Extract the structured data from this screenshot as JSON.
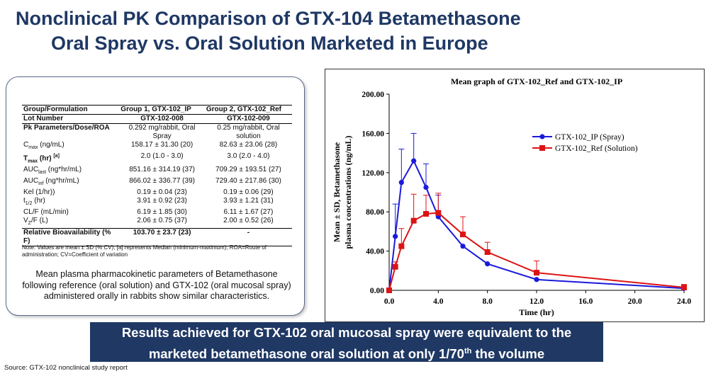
{
  "title": {
    "line1": "Nonclinical PK Comparison of GTX-104 Betamethasone",
    "line2": "Oral Spray vs. Oral Solution Marketed in Europe"
  },
  "table": {
    "header": [
      "Group/Formulation",
      "Group 1, GTX-102_IP",
      "Group 2, GTX-102_Ref"
    ],
    "lot": [
      "Lot Number",
      "GTX-102-008",
      "GTX-102-009"
    ],
    "pk_label": "Pk Parameters/Dose/ROA",
    "pk_g1": "0.292 mg/rabbit, Oral Spray",
    "pk_g2": "0.25 mg/rabbit, Oral solution",
    "rows": [
      {
        "pre": "C",
        "sub": "max",
        "post": " (ng/mL)",
        "g1": "158.17 ± 31.30 (20)",
        "g2": "82.63 ± 23.06 (28)"
      },
      {
        "pre": "T",
        "sub": "max",
        "post": " (hr) ",
        "sup": "[a]",
        "g1": "2.0 (1.0 - 3.0)",
        "g2": "3.0 (2.0 - 4.0)"
      },
      {
        "pre": "AUC",
        "sub": "last",
        "post": " (ng*hr/mL)",
        "g1": "851.16 ± 314.19 (37)",
        "g2": "709.29 ± 193.51 (27)"
      },
      {
        "pre": "AUC",
        "sub": "inf",
        "post": " (ng*hr/mL)",
        "g1": "866.02 ± 336.77 (39)",
        "g2": "729.40 ± 217.86 (30)"
      },
      {
        "pre": "Kel (1/hr))",
        "sub": "",
        "post": "",
        "g1": "0.19 ± 0.04 (23)",
        "g2": "0.19 ± 0.06 (29)"
      },
      {
        "pre": "t",
        "sub": "1/2",
        "post": " (hr)",
        "g1": "3.91 ± 0.92 (23)",
        "g2": "3.93 ± 1.21 (31)"
      },
      {
        "pre": "CL/F (mL/min)",
        "sub": "",
        "post": "",
        "g1": "6.19 ± 1.85 (30)",
        "g2": "6.11 ± 1.67 (27)"
      },
      {
        "pre": "V",
        "sub": "Z",
        "post": "/F (L)",
        "g1": "2.06 ± 0.75 (37)",
        "g2": "2.00 ± 0.52 (26)"
      }
    ],
    "rb_label": "Relative Bioavailability (% F)",
    "rb_g1": "103.70 ± 23.7 (23)",
    "rb_g2": "-",
    "note": "Note: Values are mean ± SD (% CV); [a] represents Median (minimum-maximum); ROA=Route of administration; CV=Coefficient of variation"
  },
  "caption": "Mean plasma pharmacokinetic parameters of Betamethasone following reference (oral solution) and GTX-102 (oral mucosal spray) administered orally in rabbits show similar characteristics.",
  "banner": {
    "line1": "Results achieved for GTX-102 oral mucosal spray were equivalent to the",
    "line2_pre": "marketed betamethasone oral solution at only 1/70",
    "line2_sup": "th",
    "line2_post": " the volume"
  },
  "source": "Source: GTX-102 nonclinical study report",
  "chart_data": {
    "type": "line",
    "title": "Mean graph of GTX-102_Ref and GTX-102_IP",
    "xlabel": "Time (hr)",
    "ylabel_line1": "Mean ± SD, Betamethasone",
    "ylabel_line2": "plasma concentrations (ng/mL)",
    "xlim": [
      0,
      24
    ],
    "ylim": [
      0,
      200
    ],
    "x_ticks": [
      0,
      4,
      8,
      12,
      16,
      20,
      24
    ],
    "x_tick_labels": [
      "0.0",
      "4.0",
      "8.0",
      "12.0",
      "16.0",
      "20.0",
      "24.0"
    ],
    "y_ticks": [
      0,
      40,
      80,
      120,
      160,
      200
    ],
    "y_tick_labels": [
      "0.00",
      "40.00",
      "80.00",
      "120.00",
      "160.00",
      "200.00"
    ],
    "legend_position": "top-right",
    "series": [
      {
        "name": "GTX-102_IP (Spray)",
        "color": "#1a1adc",
        "marker": "circle",
        "x": [
          0,
          0.5,
          1,
          2,
          3,
          4,
          6,
          8,
          12,
          24
        ],
        "y": [
          0,
          55,
          110,
          132,
          105,
          75,
          45,
          27,
          11,
          2
        ],
        "err_up": [
          0,
          33,
          34,
          28,
          24,
          22,
          0,
          0,
          0,
          0
        ]
      },
      {
        "name": "GTX-102_Ref (Solution)",
        "color": "#dc1414",
        "marker": "square",
        "x": [
          0,
          0.5,
          1,
          2,
          3,
          4,
          6,
          8,
          12,
          24
        ],
        "y": [
          0,
          24,
          45,
          71,
          78,
          79,
          57,
          39,
          18,
          3
        ],
        "err_up": [
          0,
          5,
          18,
          27,
          19,
          20,
          18,
          10,
          12,
          3
        ]
      }
    ]
  }
}
